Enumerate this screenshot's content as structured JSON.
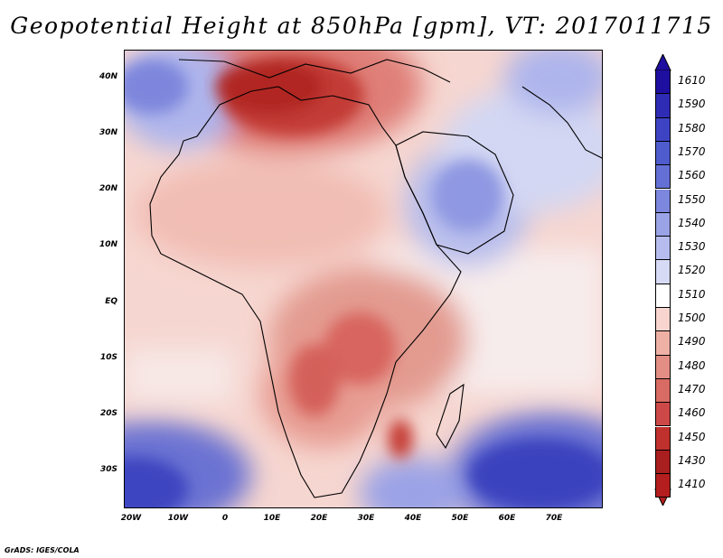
{
  "title": "Geopotential Height at 850hPa [gpm], VT: 2017011715",
  "credit": "GrADS: IGES/COLA",
  "map": {
    "lon_range": [
      -22,
      80
    ],
    "lat_range": [
      -37,
      45
    ],
    "lat_labels": [
      "40N",
      "30N",
      "20N",
      "10N",
      "EQ",
      "10S",
      "20S",
      "30S"
    ],
    "lon_labels": [
      "20W",
      "10W",
      "0",
      "10E",
      "20E",
      "30E",
      "40E",
      "50E",
      "60E",
      "70E"
    ]
  },
  "colorbar": {
    "labels": [
      "1610",
      "1590",
      "1580",
      "1570",
      "1560",
      "1550",
      "1540",
      "1530",
      "1520",
      "1510",
      "1500",
      "1490",
      "1480",
      "1470",
      "1460",
      "1450",
      "1430",
      "1410"
    ],
    "colors": [
      "#1e0fa0",
      "#2e2bb5",
      "#3d44c4",
      "#4e5ccd",
      "#6470d6",
      "#7d87de",
      "#9aa3e6",
      "#b6bdee",
      "#d6daf5",
      "#ffffff",
      "#f8d6cf",
      "#efb0a6",
      "#e38e84",
      "#d86b64",
      "#cd4948",
      "#c0302c",
      "#a91e1e",
      "#b41e1e"
    ]
  }
}
